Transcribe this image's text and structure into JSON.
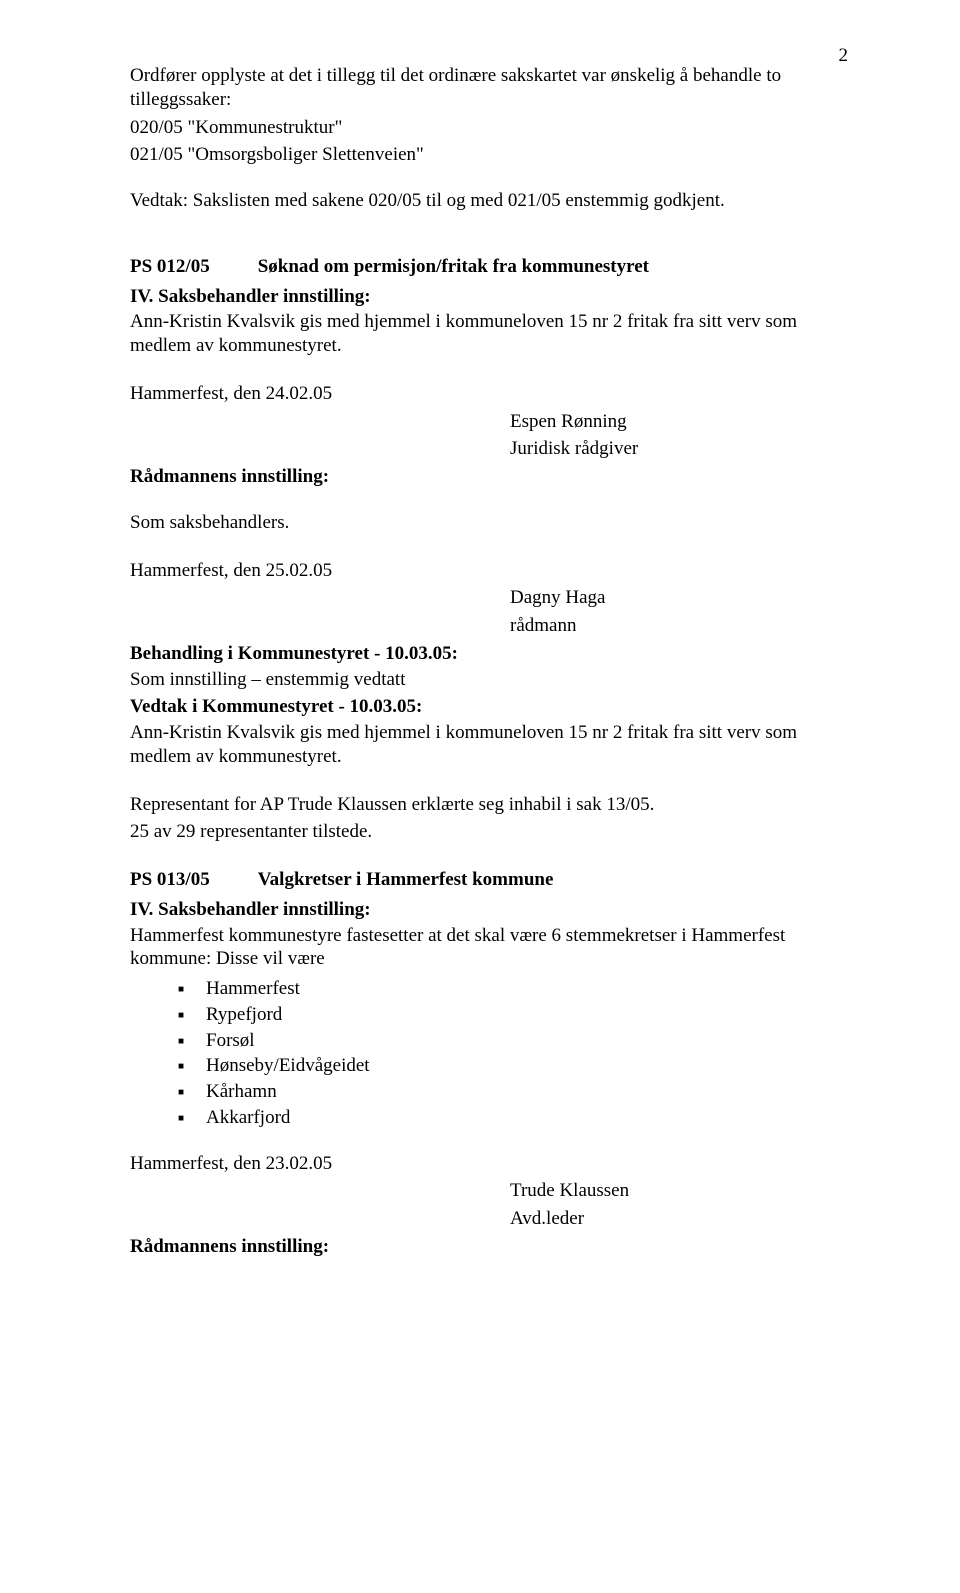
{
  "page_number": "2",
  "intro": {
    "line1": "Ordfører opplyste at det i tillegg til det ordinære sakskartet var ønskelig å behandle to tilleggssaker:",
    "line2": "020/05 \"Kommunestruktur\"",
    "line3": "021/05 \"Omsorgsboliger Slettenveien\""
  },
  "vedtak_intro": "Vedtak: Sakslisten med sakene 020/05 til og med 021/05 enstemmig godkjent.",
  "ps012": {
    "code": "PS 012/05",
    "title": "Søknad om permisjon/fritak fra kommunestyret",
    "iv_heading": "IV. Saksbehandler innstilling:",
    "iv_body": "Ann-Kristin Kvalsvik gis med hjemmel i kommuneloven 15 nr 2 fritak fra sitt verv som medlem av kommunestyret.",
    "date1": "Hammerfest, den 24.02.05",
    "sign1_name": "Espen Rønning",
    "sign1_role": "Juridisk rådgiver",
    "radmann_heading": "Rådmannens innstilling:",
    "som_saksbehandlers": "Som saksbehandlers.",
    "date2": "Hammerfest, den 25.02.05",
    "sign2_name": "Dagny Haga",
    "sign2_role": "rådmann",
    "behandling_heading": "Behandling i Kommunestyret - 10.03.05:",
    "behandling_body": "Som innstilling – enstemmig vedtatt",
    "vedtak_heading": "Vedtak i Kommunestyret - 10.03.05:",
    "vedtak_body": "Ann-Kristin Kvalsvik gis med hjemmel i kommuneloven 15 nr 2 fritak fra sitt verv som medlem av kommunestyret.",
    "inhabil": "Representant for AP Trude Klaussen erklærte seg inhabil i sak 13/05.",
    "tilstede": "25 av 29 representanter tilstede."
  },
  "ps013": {
    "code": "PS 013/05",
    "title": "Valgkretser i Hammerfest kommune",
    "iv_heading": "IV. Saksbehandler innstilling:",
    "iv_body": "Hammerfest kommunestyre fastesetter at det skal være 6 stemmekretser i Hammerfest kommune: Disse vil være",
    "bullets": [
      "Hammerfest",
      "Rypefjord",
      "Forsøl",
      "Hønseby/Eidvågeidet",
      "Kårhamn",
      "Akkarfjord"
    ],
    "date": "Hammerfest, den 23.02.05",
    "sign_name": "Trude Klaussen",
    "sign_role": "Avd.leder",
    "radmann_heading": "Rådmannens innstilling:"
  }
}
